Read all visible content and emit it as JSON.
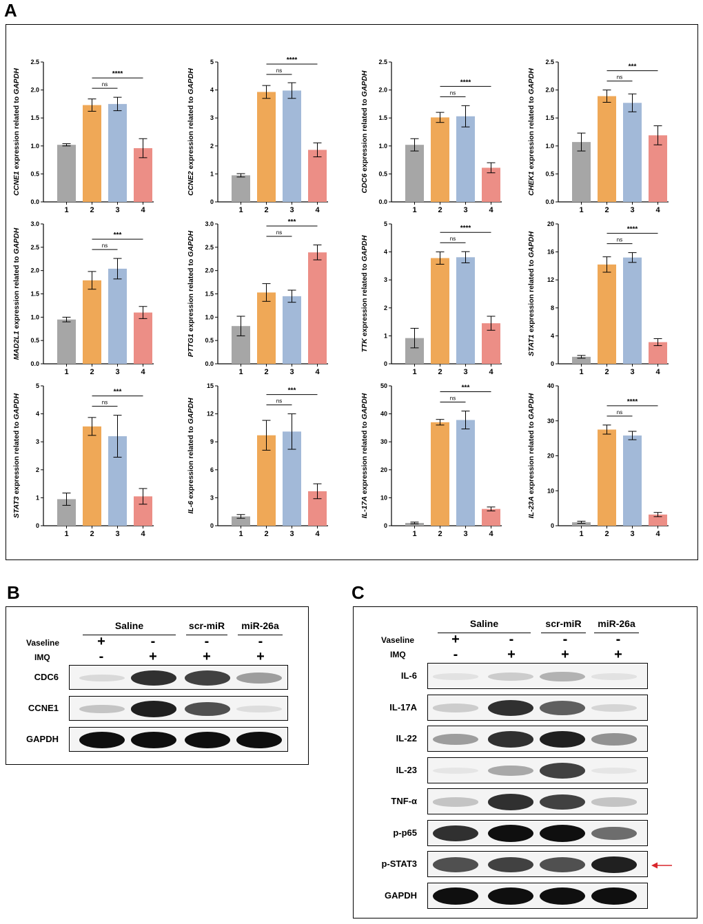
{
  "panels": {
    "a": "A",
    "b": "B",
    "c": "C"
  },
  "colors": {
    "g1": "#a6a6a6",
    "g2": "#efa857",
    "g3": "#a2b9d8",
    "g4": "#ec8e86",
    "arrow": "#d9262c"
  },
  "chart_data": [
    {
      "type": "bar",
      "gene": "CCNE1",
      "ylabel_suffix": " expression related to ",
      "ref_gene": "GAPDH",
      "categories": [
        "1",
        "2",
        "3",
        "4"
      ],
      "values": [
        1.02,
        1.73,
        1.75,
        0.96
      ],
      "errors": [
        0.02,
        0.11,
        0.12,
        0.17
      ],
      "ylim": [
        0,
        2.5
      ],
      "ticks": [
        0,
        0.5,
        1.0,
        1.5,
        2.0,
        2.5
      ],
      "tick_labels": [
        "0.0",
        "0.5",
        "1.0",
        "1.5",
        "2.0",
        "2.5"
      ],
      "sig": [
        {
          "from": "2",
          "to": "3",
          "label": "ns"
        },
        {
          "from": "2",
          "to": "4",
          "label": "****"
        }
      ]
    },
    {
      "type": "bar",
      "gene": "CCNE2",
      "ylabel_suffix": " expression related to ",
      "ref_gene": "GAPDH",
      "categories": [
        "1",
        "2",
        "3",
        "4"
      ],
      "values": [
        0.95,
        3.93,
        3.98,
        1.86
      ],
      "errors": [
        0.06,
        0.23,
        0.28,
        0.25
      ],
      "ylim": [
        0,
        5
      ],
      "ticks": [
        0,
        1,
        2,
        3,
        4,
        5
      ],
      "tick_labels": [
        "0",
        "1",
        "2",
        "3",
        "4",
        "5"
      ],
      "sig": [
        {
          "from": "2",
          "to": "3",
          "label": "ns"
        },
        {
          "from": "2",
          "to": "4",
          "label": "****"
        }
      ]
    },
    {
      "type": "bar",
      "gene": "CDC6",
      "ylabel_suffix": " expression related to ",
      "ref_gene": "GAPDH",
      "categories": [
        "1",
        "2",
        "3",
        "4"
      ],
      "values": [
        1.02,
        1.51,
        1.53,
        0.61
      ],
      "errors": [
        0.11,
        0.09,
        0.19,
        0.09
      ],
      "ylim": [
        0,
        2.5
      ],
      "ticks": [
        0,
        0.5,
        1.0,
        1.5,
        2.0,
        2.5
      ],
      "tick_labels": [
        "0.0",
        "0.5",
        "1.0",
        "1.5",
        "2.0",
        "2.5"
      ],
      "sig": [
        {
          "from": "2",
          "to": "3",
          "label": "ns"
        },
        {
          "from": "2",
          "to": "4",
          "label": "****"
        }
      ]
    },
    {
      "type": "bar",
      "gene": "CHEK1",
      "ylabel_suffix": " expression related to ",
      "ref_gene": "GAPDH",
      "categories": [
        "1",
        "2",
        "3",
        "4"
      ],
      "values": [
        1.07,
        1.89,
        1.77,
        1.19
      ],
      "errors": [
        0.16,
        0.11,
        0.16,
        0.17
      ],
      "ylim": [
        0,
        2.5
      ],
      "ticks": [
        0,
        0.5,
        1.0,
        1.5,
        2.0,
        2.5
      ],
      "tick_labels": [
        "0.0",
        "0.5",
        "1.0",
        "1.5",
        "2.0",
        "2.5"
      ],
      "sig": [
        {
          "from": "2",
          "to": "3",
          "label": "ns"
        },
        {
          "from": "2",
          "to": "4",
          "label": "***"
        }
      ]
    },
    {
      "type": "bar",
      "gene": "MAD2L1",
      "ylabel_suffix": " expression related to ",
      "ref_gene": "GAPDH",
      "categories": [
        "1",
        "2",
        "3",
        "4"
      ],
      "values": [
        0.95,
        1.79,
        2.04,
        1.1
      ],
      "errors": [
        0.05,
        0.19,
        0.22,
        0.13
      ],
      "ylim": [
        0,
        3.0
      ],
      "ticks": [
        0,
        0.5,
        1.0,
        1.5,
        2.0,
        2.5,
        3.0
      ],
      "tick_labels": [
        "0.0",
        "0.5",
        "1.0",
        "1.5",
        "2.0",
        "2.5",
        "3.0"
      ],
      "sig": [
        {
          "from": "2",
          "to": "3",
          "label": "ns"
        },
        {
          "from": "2",
          "to": "4",
          "label": "***"
        }
      ]
    },
    {
      "type": "bar",
      "gene": "PTTG1",
      "ylabel_suffix": " expression related to ",
      "ref_gene": "GAPDH",
      "categories": [
        "1",
        "2",
        "3",
        "4"
      ],
      "values": [
        0.81,
        1.53,
        1.45,
        2.39
      ],
      "errors": [
        0.21,
        0.19,
        0.13,
        0.16
      ],
      "ylim": [
        0,
        3.0
      ],
      "ticks": [
        0,
        0.5,
        1.0,
        1.5,
        2.0,
        2.5,
        3.0
      ],
      "tick_labels": [
        "0.0",
        "0.5",
        "1.0",
        "1.5",
        "2.0",
        "2.5",
        "3.0"
      ],
      "sig": [
        {
          "from": "2",
          "to": "3",
          "label": "ns"
        },
        {
          "from": "2",
          "to": "4",
          "label": "***"
        }
      ]
    },
    {
      "type": "bar",
      "gene": "TTK",
      "ylabel_suffix": " expression related to ",
      "ref_gene": "GAPDH",
      "categories": [
        "1",
        "2",
        "3",
        "4"
      ],
      "values": [
        0.92,
        3.78,
        3.81,
        1.45
      ],
      "errors": [
        0.35,
        0.22,
        0.2,
        0.25
      ],
      "ylim": [
        0,
        5
      ],
      "ticks": [
        0,
        1,
        2,
        3,
        4,
        5
      ],
      "tick_labels": [
        "0",
        "1",
        "2",
        "3",
        "4",
        "5"
      ],
      "sig": [
        {
          "from": "2",
          "to": "3",
          "label": "ns"
        },
        {
          "from": "2",
          "to": "4",
          "label": "****"
        }
      ]
    },
    {
      "type": "bar",
      "gene": "STAT1",
      "ylabel_suffix": " expression related to ",
      "ref_gene": "GAPDH",
      "categories": [
        "1",
        "2",
        "3",
        "4"
      ],
      "values": [
        1.0,
        14.2,
        15.2,
        3.1
      ],
      "errors": [
        0.2,
        1.1,
        0.7,
        0.5
      ],
      "ylim": [
        0,
        20
      ],
      "ticks": [
        0,
        4,
        8,
        12,
        16,
        20
      ],
      "tick_labels": [
        "0",
        "4",
        "8",
        "12",
        "16",
        "20"
      ],
      "sig": [
        {
          "from": "2",
          "to": "3",
          "label": "ns"
        },
        {
          "from": "2",
          "to": "4",
          "label": "****"
        }
      ]
    },
    {
      "type": "bar",
      "gene": "STAT3",
      "ylabel_suffix": " expression related to ",
      "ref_gene": "GAPDH",
      "categories": [
        "1",
        "2",
        "3",
        "4"
      ],
      "values": [
        0.95,
        3.55,
        3.2,
        1.05
      ],
      "errors": [
        0.22,
        0.32,
        0.75,
        0.28
      ],
      "ylim": [
        0,
        5
      ],
      "ticks": [
        0,
        1,
        2,
        3,
        4,
        5
      ],
      "tick_labels": [
        "0",
        "1",
        "2",
        "3",
        "4",
        "5"
      ],
      "sig": [
        {
          "from": "2",
          "to": "3",
          "label": "ns"
        },
        {
          "from": "2",
          "to": "4",
          "label": "***"
        }
      ]
    },
    {
      "type": "bar",
      "gene": "IL-6",
      "ylabel_suffix": " expression related to ",
      "ref_gene": "GAPDH",
      "categories": [
        "1",
        "2",
        "3",
        "4"
      ],
      "values": [
        1.0,
        9.7,
        10.1,
        3.7
      ],
      "errors": [
        0.2,
        1.6,
        1.9,
        0.8
      ],
      "ylim": [
        0,
        15
      ],
      "ticks": [
        0,
        3,
        6,
        9,
        12,
        15
      ],
      "tick_labels": [
        "0",
        "3",
        "6",
        "9",
        "12",
        "15"
      ],
      "sig": [
        {
          "from": "2",
          "to": "3",
          "label": "ns"
        },
        {
          "from": "2",
          "to": "4",
          "label": "***"
        }
      ]
    },
    {
      "type": "bar",
      "gene": "IL-17A",
      "ylabel_suffix": " expression related to ",
      "ref_gene": "GAPDH",
      "categories": [
        "1",
        "2",
        "3",
        "4"
      ],
      "values": [
        1.0,
        37.0,
        37.8,
        6.0
      ],
      "errors": [
        0.3,
        1.0,
        3.2,
        0.7
      ],
      "ylim": [
        0,
        50
      ],
      "ticks": [
        0,
        10,
        20,
        30,
        40,
        50
      ],
      "tick_labels": [
        "0",
        "10",
        "20",
        "30",
        "40",
        "50"
      ],
      "sig": [
        {
          "from": "2",
          "to": "3",
          "label": "ns"
        },
        {
          "from": "2",
          "to": "4",
          "label": "***"
        }
      ]
    },
    {
      "type": "bar",
      "gene": "IL-23A",
      "ylabel_suffix": " expression related to ",
      "ref_gene": "GAPDH",
      "categories": [
        "1",
        "2",
        "3",
        "4"
      ],
      "values": [
        1.0,
        27.5,
        25.8,
        3.2
      ],
      "errors": [
        0.3,
        1.3,
        1.2,
        0.6
      ],
      "ylim": [
        0,
        40
      ],
      "ticks": [
        0,
        10,
        20,
        30,
        40
      ],
      "tick_labels": [
        "0",
        "10",
        "20",
        "30",
        "40"
      ],
      "sig": [
        {
          "from": "2",
          "to": "3",
          "label": "ns"
        },
        {
          "from": "2",
          "to": "4",
          "label": "****"
        }
      ]
    }
  ],
  "panel_b": {
    "groups": [
      "Saline",
      "scr-miR",
      "miR-26a"
    ],
    "treatments": [
      {
        "name": "Vaseline",
        "signs": [
          "+",
          "-",
          "-",
          "-"
        ]
      },
      {
        "name": "IMQ",
        "signs": [
          "-",
          "+",
          "+",
          "+"
        ]
      }
    ],
    "blots": [
      "CDC6",
      "CCNE1",
      "GAPDH"
    ],
    "band_intensity": [
      [
        0.15,
        0.9,
        0.85,
        0.5
      ],
      [
        0.3,
        0.95,
        0.8,
        0.12
      ],
      [
        1.0,
        1.0,
        1.0,
        1.0
      ]
    ]
  },
  "panel_c": {
    "groups": [
      "Saline",
      "scr-miR",
      "miR-26a"
    ],
    "treatments": [
      {
        "name": "Vaseline",
        "signs": [
          "+",
          "-",
          "-",
          "-"
        ]
      },
      {
        "name": "IMQ",
        "signs": [
          "-",
          "+",
          "+",
          "+"
        ]
      }
    ],
    "blots": [
      "IL-6",
      "IL-17A",
      "IL-22",
      "IL-23",
      "TNF-α",
      "p-p65",
      "p-STAT3",
      "GAPDH"
    ],
    "band_intensity": [
      [
        0.08,
        0.25,
        0.4,
        0.08
      ],
      [
        0.25,
        0.9,
        0.75,
        0.18
      ],
      [
        0.5,
        0.9,
        0.95,
        0.55
      ],
      [
        0.05,
        0.45,
        0.85,
        0.05
      ],
      [
        0.3,
        0.9,
        0.85,
        0.3
      ],
      [
        0.9,
        1.0,
        1.0,
        0.7
      ],
      [
        0.8,
        0.85,
        0.8,
        0.95
      ],
      [
        1.0,
        1.0,
        1.0,
        1.0
      ]
    ]
  }
}
